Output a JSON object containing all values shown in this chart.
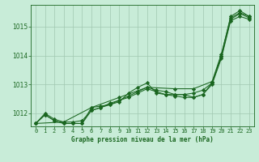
{
  "title": "Graphe pression niveau de la mer (hPa)",
  "bg_color": "#c8ecd8",
  "grid_color": "#a0c8b0",
  "line_color": "#1a6620",
  "marker_color": "#1a6620",
  "xlim": [
    -0.5,
    23.5
  ],
  "ylim": [
    1011.55,
    1015.75
  ],
  "yticks": [
    1012,
    1013,
    1014,
    1015
  ],
  "xticks": [
    0,
    1,
    2,
    3,
    4,
    5,
    6,
    7,
    8,
    9,
    10,
    11,
    12,
    13,
    14,
    15,
    16,
    17,
    18,
    19,
    20,
    21,
    22,
    23
  ],
  "series": [
    {
      "x": [
        0,
        1,
        2,
        3,
        4,
        5,
        6,
        7,
        8,
        9,
        10,
        11,
        12,
        13,
        14,
        15,
        16,
        17,
        18,
        19,
        20,
        21,
        22,
        23
      ],
      "y": [
        1011.65,
        1012.0,
        1011.8,
        1011.7,
        1011.7,
        1011.75,
        1012.1,
        1012.2,
        1012.35,
        1012.45,
        1012.6,
        1012.75,
        1012.9,
        1012.8,
        1012.75,
        1012.65,
        1012.65,
        1012.7,
        1012.8,
        1013.05,
        1014.0,
        1015.35,
        1015.55,
        1015.35
      ]
    },
    {
      "x": [
        0,
        1,
        2,
        3,
        4,
        5,
        6,
        7,
        8,
        9,
        10,
        11,
        12,
        13,
        14,
        15,
        16,
        17,
        18,
        19,
        20,
        21,
        22,
        23
      ],
      "y": [
        1011.65,
        1011.95,
        1011.75,
        1011.65,
        1011.65,
        1011.65,
        1012.1,
        1012.2,
        1012.3,
        1012.4,
        1012.7,
        1012.9,
        1013.05,
        1012.7,
        1012.65,
        1012.65,
        1012.65,
        1012.55,
        1012.65,
        1013.05,
        1013.95,
        1015.25,
        1015.45,
        1015.3
      ]
    },
    {
      "x": [
        0,
        3,
        6,
        9,
        12,
        15,
        17,
        19,
        20,
        21,
        22,
        23
      ],
      "y": [
        1011.65,
        1011.7,
        1012.2,
        1012.55,
        1012.9,
        1012.85,
        1012.85,
        1013.1,
        1014.05,
        1015.3,
        1015.48,
        1015.35
      ]
    },
    {
      "x": [
        0,
        1,
        2,
        3,
        4,
        5,
        6,
        7,
        8,
        9,
        10,
        11,
        12,
        13,
        14,
        15,
        16,
        17,
        18,
        19,
        20,
        21,
        22,
        23
      ],
      "y": [
        1011.65,
        1011.95,
        1011.75,
        1011.65,
        1011.65,
        1011.65,
        1012.2,
        1012.25,
        1012.3,
        1012.45,
        1012.55,
        1012.7,
        1012.85,
        1012.75,
        1012.65,
        1012.6,
        1012.55,
        1012.55,
        1012.65,
        1013.0,
        1013.9,
        1015.2,
        1015.35,
        1015.25
      ]
    }
  ]
}
